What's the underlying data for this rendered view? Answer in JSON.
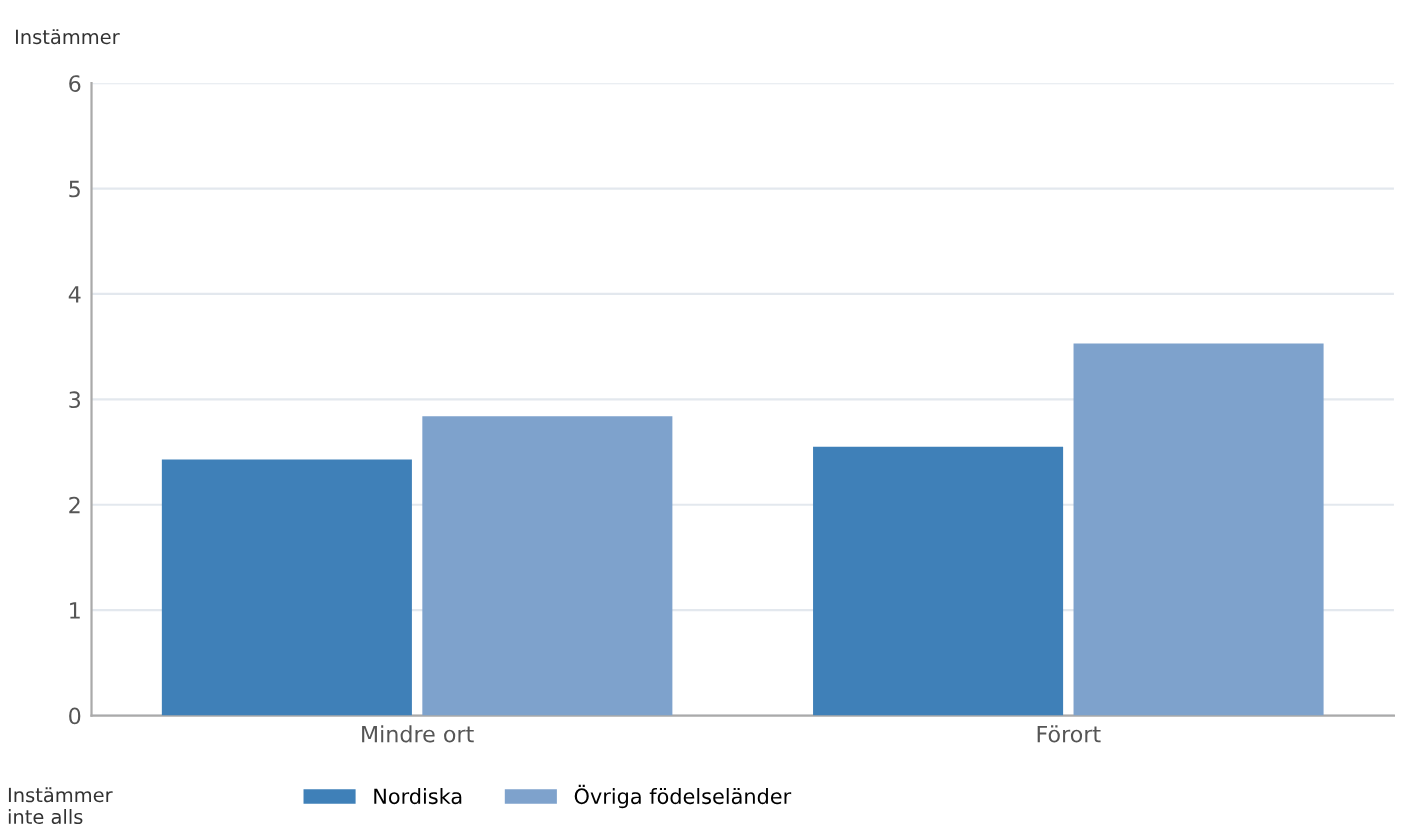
{
  "chart_data": {
    "type": "bar",
    "ylabel": "Instämmer",
    "annotations": [
      "Instämmer\ninte alls"
    ],
    "categories": [
      "Mindre ort",
      "Förort"
    ],
    "series": [
      {
        "name": "Nordiska",
        "color": "#3f80b8",
        "values": [
          2.43,
          2.55
        ]
      },
      {
        "name": "Övriga födelseländer",
        "color": "#7ea2cc",
        "values": [
          2.84,
          3.53
        ]
      }
    ],
    "ylim": [
      0,
      6
    ],
    "yticks": [
      0,
      1,
      2,
      3,
      4,
      5,
      6
    ],
    "grid": "y",
    "legend": "bottom"
  }
}
